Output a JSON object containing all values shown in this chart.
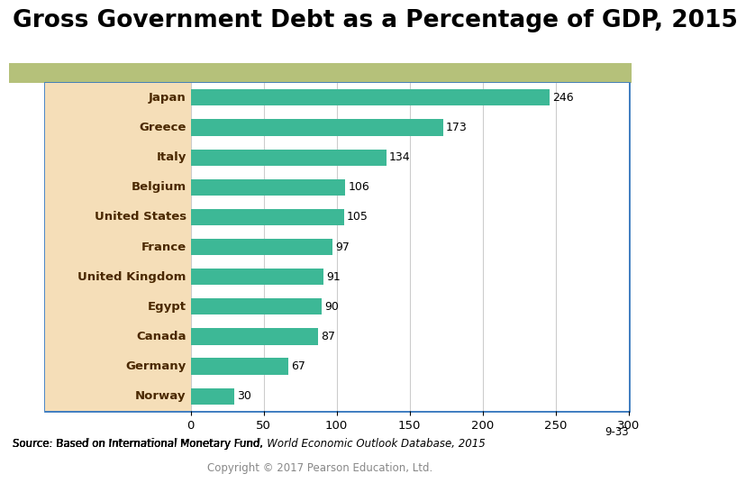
{
  "title": "Gross Government Debt as a Percentage of GDP, 2015",
  "title_fontsize": 19,
  "title_fontweight": "bold",
  "categories": [
    "Japan",
    "Greece",
    "Italy",
    "Belgium",
    "United States",
    "France",
    "United Kingdom",
    "Egypt",
    "Canada",
    "Germany",
    "Norway"
  ],
  "values": [
    246,
    173,
    134,
    106,
    105,
    97,
    91,
    90,
    87,
    67,
    30
  ],
  "bar_color": "#3db896",
  "bar_height": 0.55,
  "xlim": [
    0,
    300
  ],
  "xticks": [
    0,
    50,
    100,
    150,
    200,
    250,
    300
  ],
  "source_text_normal": "Source: Based on International Monetary Fund, ",
  "source_text_italic": "World Economic Outlook Database",
  "source_text_end": ", 2015",
  "copyright_text": "Copyright © 2017 Pearson Education, Ltd.",
  "slide_number": "9-33",
  "title_bg_color": "#ffffff",
  "strip_color": "#b5c17a",
  "left_panel_color": "#f5deb8",
  "chart_bg_color": "#ffffff",
  "border_color": "#3a7abf",
  "grid_color": "#cccccc",
  "label_fontsize": 9.5,
  "value_fontsize": 9,
  "source_fontsize": 8.5,
  "copyright_fontsize": 8.5,
  "cat_label_color": "#4a2800"
}
